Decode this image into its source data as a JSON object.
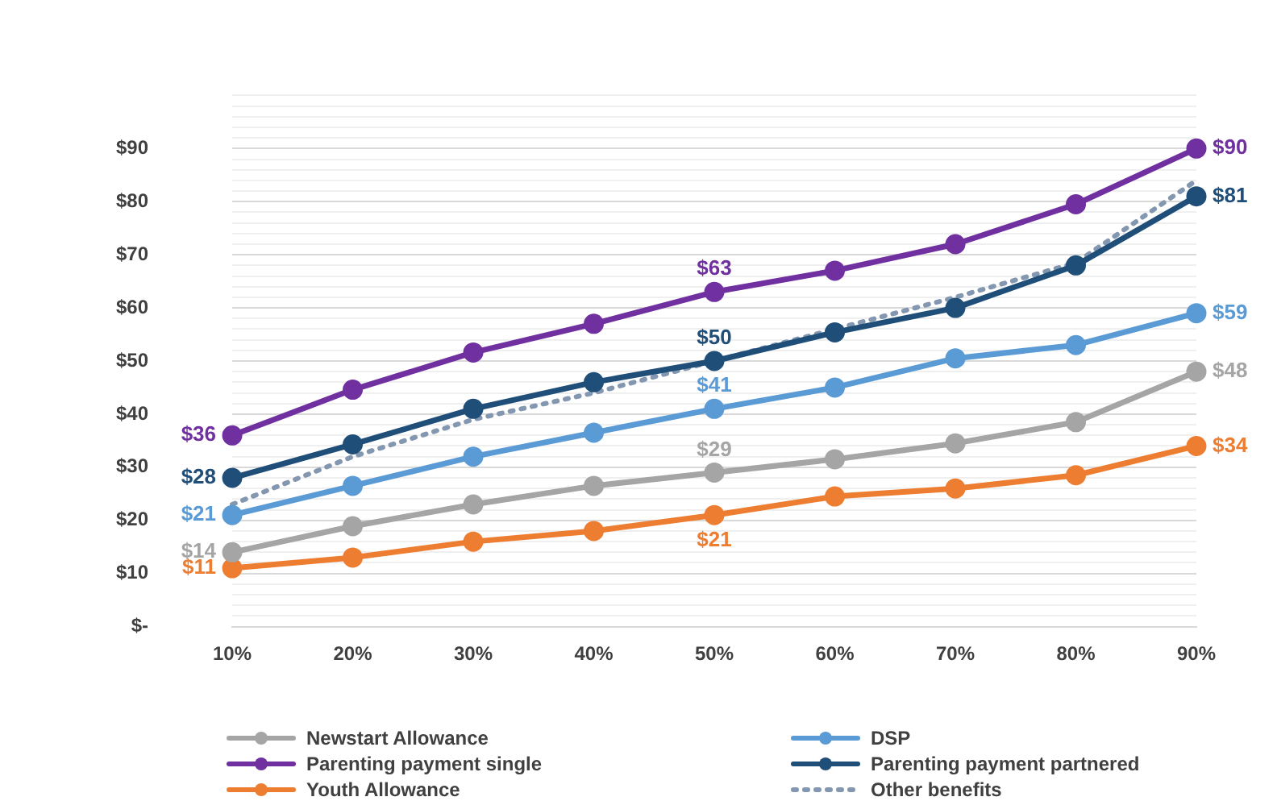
{
  "chart_data": {
    "type": "line",
    "categories": [
      "10%",
      "20%",
      "30%",
      "40%",
      "50%",
      "60%",
      "70%",
      "80%",
      "90%"
    ],
    "series": [
      {
        "name": "Newstart Allowance",
        "color": "#a5a5a5",
        "values": [
          14,
          18.9,
          23,
          26.5,
          29,
          31.5,
          34.5,
          38.5,
          48
        ],
        "value_labels": [
          "$14",
          null,
          null,
          null,
          "$29",
          null,
          null,
          null,
          "$48"
        ]
      },
      {
        "name": "DSP",
        "color": "#5b9bd5",
        "values": [
          21,
          26.5,
          32,
          36.5,
          41,
          45,
          50.5,
          53,
          59
        ],
        "value_labels": [
          "$21",
          null,
          null,
          null,
          "$41",
          null,
          null,
          null,
          "$59"
        ]
      },
      {
        "name": "Parenting payment single",
        "color": "#7030a0",
        "values": [
          36,
          44.6,
          51.6,
          57,
          63,
          67,
          72,
          79.5,
          90
        ],
        "value_labels": [
          "$36",
          null,
          null,
          null,
          "$63",
          null,
          null,
          null,
          "$90"
        ]
      },
      {
        "name": "Parenting payment partnered",
        "color": "#1f4e79",
        "values": [
          28,
          34.3,
          41,
          46,
          50,
          55.4,
          60,
          68,
          81
        ],
        "value_labels": [
          "$28",
          null,
          null,
          null,
          "$50",
          null,
          null,
          null,
          "$81"
        ]
      },
      {
        "name": "Youth Allowance",
        "color": "#ed7d31",
        "values": [
          11,
          13,
          16,
          18,
          21,
          24.5,
          26,
          28.5,
          34
        ],
        "value_labels": [
          "$11",
          null,
          null,
          null,
          "$21",
          null,
          null,
          null,
          "$34"
        ]
      },
      {
        "name": "Other benefits",
        "color": "#8497b0",
        "values": [
          23,
          32,
          39,
          44,
          50,
          56,
          62,
          68.5,
          84
        ],
        "line_style": "dotted",
        "marker": "none"
      }
    ],
    "ylim": [
      0,
      100
    ],
    "yticks": [
      {
        "value": 0,
        "label": "$-"
      },
      {
        "value": 2,
        "label": null
      },
      {
        "value": 4,
        "label": null
      },
      {
        "value": 6,
        "label": null
      },
      {
        "value": 8,
        "label": null
      },
      {
        "value": 10,
        "label": "$10"
      },
      {
        "value": 12,
        "label": null
      },
      {
        "value": 14,
        "label": null
      },
      {
        "value": 16,
        "label": null
      },
      {
        "value": 18,
        "label": null
      },
      {
        "value": 20,
        "label": "$20"
      },
      {
        "value": 22,
        "label": null
      },
      {
        "value": 24,
        "label": null
      },
      {
        "value": 26,
        "label": null
      },
      {
        "value": 28,
        "label": null
      },
      {
        "value": 30,
        "label": "$30"
      },
      {
        "value": 32,
        "label": null
      },
      {
        "value": 34,
        "label": null
      },
      {
        "value": 36,
        "label": null
      },
      {
        "value": 38,
        "label": null
      },
      {
        "value": 40,
        "label": "$40"
      },
      {
        "value": 42,
        "label": null
      },
      {
        "value": 44,
        "label": null
      },
      {
        "value": 46,
        "label": null
      },
      {
        "value": 48,
        "label": null
      },
      {
        "value": 50,
        "label": "$50"
      },
      {
        "value": 52,
        "label": null
      },
      {
        "value": 54,
        "label": null
      },
      {
        "value": 56,
        "label": null
      },
      {
        "value": 58,
        "label": null
      },
      {
        "value": 60,
        "label": "$60"
      },
      {
        "value": 62,
        "label": null
      },
      {
        "value": 64,
        "label": null
      },
      {
        "value": 66,
        "label": null
      },
      {
        "value": 68,
        "label": null
      },
      {
        "value": 70,
        "label": "$70"
      },
      {
        "value": 72,
        "label": null
      },
      {
        "value": 74,
        "label": null
      },
      {
        "value": 76,
        "label": null
      },
      {
        "value": 78,
        "label": null
      },
      {
        "value": 80,
        "label": "$80"
      },
      {
        "value": 82,
        "label": null
      },
      {
        "value": 84,
        "label": null
      },
      {
        "value": 86,
        "label": null
      },
      {
        "value": 88,
        "label": null
      },
      {
        "value": 90,
        "label": "$90"
      },
      {
        "value": 92,
        "label": null
      },
      {
        "value": 94,
        "label": null
      },
      {
        "value": 96,
        "label": null
      },
      {
        "value": 98,
        "label": null
      },
      {
        "value": 100,
        "label": null
      }
    ],
    "grid": "y",
    "legend": "bottom",
    "marker": "circle",
    "line_style": "solid"
  }
}
